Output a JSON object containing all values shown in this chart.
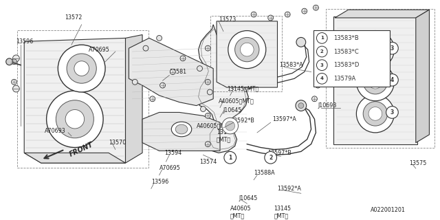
{
  "background_color": "#ffffff",
  "line_color": "#333333",
  "legend_items": [
    {
      "num": "1",
      "code": "13583*B"
    },
    {
      "num": "2",
      "code": "13583*C"
    },
    {
      "num": "3",
      "code": "13583*D"
    },
    {
      "num": "4",
      "code": "13579A"
    }
  ],
  "figsize": [
    6.4,
    3.2
  ],
  "dpi": 100
}
